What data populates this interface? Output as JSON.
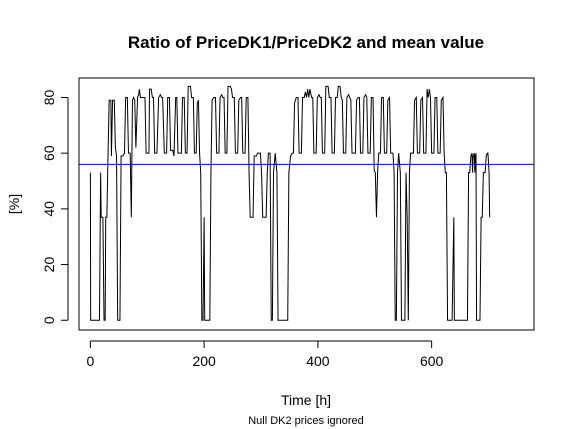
{
  "chart_data": {
    "type": "line",
    "title": "Ratio of PriceDK1/PriceDK2 and mean value",
    "xlabel": "Time [h]",
    "ylabel": "[%]",
    "subtitle": "Null DK2 prices ignored",
    "xlim": [
      -20,
      780
    ],
    "ylim": [
      -3.5,
      87
    ],
    "x_ticks": [
      0,
      200,
      400,
      600
    ],
    "y_ticks": [
      0,
      20,
      40,
      60,
      80
    ],
    "grid": false,
    "mean_line": {
      "value": 56,
      "color": "#0000cc"
    },
    "series": [
      {
        "color": "#000000",
        "points": [
          [
            0,
            53
          ],
          [
            0.5,
            0
          ],
          [
            8,
            0
          ],
          [
            10,
            0
          ],
          [
            16,
            0
          ],
          [
            18,
            53
          ],
          [
            19,
            37
          ],
          [
            22,
            37
          ],
          [
            24,
            0
          ],
          [
            26,
            0
          ],
          [
            27,
            37
          ],
          [
            29,
            37
          ],
          [
            31,
            59
          ],
          [
            33,
            79
          ],
          [
            36,
            79
          ],
          [
            37,
            59
          ],
          [
            39,
            79
          ],
          [
            42,
            79
          ],
          [
            44,
            62
          ],
          [
            46,
            59
          ],
          [
            48,
            0
          ],
          [
            50,
            0
          ],
          [
            52,
            0
          ],
          [
            54,
            59
          ],
          [
            57,
            59
          ],
          [
            60,
            60
          ],
          [
            62,
            80
          ],
          [
            65,
            80
          ],
          [
            67,
            60
          ],
          [
            70,
            60
          ],
          [
            72,
            37
          ],
          [
            74,
            79
          ],
          [
            76,
            80
          ],
          [
            78,
            79
          ],
          [
            80,
            62
          ],
          [
            83,
            80
          ],
          [
            85,
            81
          ],
          [
            86,
            83
          ],
          [
            88,
            80
          ],
          [
            92,
            80
          ],
          [
            96,
            80
          ],
          [
            98,
            60
          ],
          [
            103,
            60
          ],
          [
            104,
            83
          ],
          [
            107,
            83
          ],
          [
            109,
            80
          ],
          [
            111,
            80
          ],
          [
            113,
            60
          ],
          [
            117,
            60
          ],
          [
            120,
            80
          ],
          [
            123,
            81
          ],
          [
            125,
            80
          ],
          [
            127,
            80
          ],
          [
            130,
            60
          ],
          [
            134,
            60
          ],
          [
            136,
            80
          ],
          [
            139,
            80
          ],
          [
            141,
            61
          ],
          [
            145,
            61
          ],
          [
            147,
            59
          ],
          [
            150,
            80
          ],
          [
            152,
            80
          ],
          [
            154,
            60
          ],
          [
            158,
            60
          ],
          [
            160,
            60
          ],
          [
            162,
            80
          ],
          [
            165,
            80
          ],
          [
            167,
            60
          ],
          [
            170,
            60
          ],
          [
            172,
            84
          ],
          [
            176,
            84
          ],
          [
            178,
            80
          ],
          [
            181,
            80
          ],
          [
            183,
            60
          ],
          [
            186,
            60
          ],
          [
            188,
            78
          ],
          [
            190,
            79
          ],
          [
            192,
            60
          ],
          [
            194,
            53
          ],
          [
            196,
            0
          ],
          [
            198,
            0
          ],
          [
            200,
            37
          ],
          [
            201,
            0
          ],
          [
            204,
            0
          ],
          [
            206,
            0
          ],
          [
            208,
            0
          ],
          [
            210,
            0
          ],
          [
            212,
            53
          ],
          [
            214,
            79
          ],
          [
            217,
            80
          ],
          [
            220,
            80
          ],
          [
            222,
            60
          ],
          [
            226,
            60
          ],
          [
            228,
            80
          ],
          [
            231,
            81
          ],
          [
            233,
            80
          ],
          [
            235,
            80
          ],
          [
            237,
            60
          ],
          [
            240,
            60
          ],
          [
            242,
            84
          ],
          [
            246,
            84
          ],
          [
            248,
            83
          ],
          [
            250,
            80
          ],
          [
            253,
            80
          ],
          [
            255,
            60
          ],
          [
            259,
            60
          ],
          [
            261,
            79
          ],
          [
            264,
            80
          ],
          [
            266,
            80
          ],
          [
            268,
            60
          ],
          [
            272,
            60
          ],
          [
            274,
            80
          ],
          [
            277,
            80
          ],
          [
            279,
            53
          ],
          [
            281,
            37
          ],
          [
            286,
            37
          ],
          [
            288,
            59
          ],
          [
            292,
            59
          ],
          [
            294,
            60
          ],
          [
            299,
            60
          ],
          [
            301,
            53
          ],
          [
            303,
            37
          ],
          [
            309,
            37
          ],
          [
            311,
            53
          ],
          [
            313,
            60
          ],
          [
            316,
            60
          ],
          [
            318,
            0
          ],
          [
            320,
            0
          ],
          [
            322,
            53
          ],
          [
            325,
            60
          ],
          [
            328,
            53
          ],
          [
            330,
            0
          ],
          [
            345,
            0
          ],
          [
            347,
            0
          ],
          [
            349,
            53
          ],
          [
            352,
            59
          ],
          [
            355,
            60
          ],
          [
            357,
            60
          ],
          [
            359,
            78
          ],
          [
            362,
            80
          ],
          [
            365,
            80
          ],
          [
            367,
            60
          ],
          [
            371,
            60
          ],
          [
            373,
            80
          ],
          [
            376,
            80
          ],
          [
            378,
            82
          ],
          [
            380,
            80
          ],
          [
            382,
            83
          ],
          [
            384,
            80
          ],
          [
            386,
            83
          ],
          [
            389,
            80
          ],
          [
            391,
            80
          ],
          [
            393,
            60
          ],
          [
            397,
            60
          ],
          [
            399,
            80
          ],
          [
            402,
            81
          ],
          [
            404,
            80
          ],
          [
            406,
            80
          ],
          [
            408,
            60
          ],
          [
            412,
            60
          ],
          [
            414,
            84
          ],
          [
            418,
            84
          ],
          [
            420,
            80
          ],
          [
            423,
            80
          ],
          [
            425,
            60
          ],
          [
            429,
            60
          ],
          [
            431,
            80
          ],
          [
            434,
            80
          ],
          [
            436,
            84
          ],
          [
            439,
            84
          ],
          [
            441,
            80
          ],
          [
            443,
            79
          ],
          [
            445,
            60
          ],
          [
            449,
            60
          ],
          [
            451,
            80
          ],
          [
            454,
            81
          ],
          [
            456,
            80
          ],
          [
            458,
            79
          ],
          [
            460,
            60
          ],
          [
            464,
            60
          ],
          [
            466,
            60
          ],
          [
            468,
            79
          ],
          [
            471,
            80
          ],
          [
            473,
            80
          ],
          [
            475,
            60
          ],
          [
            479,
            60
          ],
          [
            481,
            80
          ],
          [
            484,
            81
          ],
          [
            486,
            80
          ],
          [
            488,
            60
          ],
          [
            492,
            60
          ],
          [
            494,
            80
          ],
          [
            497,
            80
          ],
          [
            499,
            54
          ],
          [
            501,
            53
          ],
          [
            503,
            37
          ],
          [
            505,
            53
          ],
          [
            507,
            60
          ],
          [
            510,
            60
          ],
          [
            512,
            80
          ],
          [
            515,
            80
          ],
          [
            517,
            60
          ],
          [
            521,
            60
          ],
          [
            523,
            79
          ],
          [
            526,
            80
          ],
          [
            528,
            60
          ],
          [
            532,
            60
          ],
          [
            534,
            53
          ],
          [
            536,
            0
          ],
          [
            538,
            0
          ],
          [
            540,
            53
          ],
          [
            542,
            60
          ],
          [
            545,
            53
          ],
          [
            547,
            0
          ],
          [
            551,
            0
          ],
          [
            553,
            0
          ],
          [
            555,
            53
          ],
          [
            557,
            37
          ],
          [
            559,
            0
          ],
          [
            561,
            53
          ],
          [
            563,
            60
          ],
          [
            566,
            60
          ],
          [
            568,
            60
          ],
          [
            570,
            79
          ],
          [
            573,
            80
          ],
          [
            575,
            60
          ],
          [
            579,
            60
          ],
          [
            581,
            79
          ],
          [
            584,
            80
          ],
          [
            586,
            60
          ],
          [
            590,
            60
          ],
          [
            592,
            83
          ],
          [
            594,
            80
          ],
          [
            596,
            83
          ],
          [
            598,
            80
          ],
          [
            600,
            60
          ],
          [
            604,
            60
          ],
          [
            606,
            80
          ],
          [
            609,
            80
          ],
          [
            611,
            60
          ],
          [
            615,
            60
          ],
          [
            617,
            79
          ],
          [
            620,
            80
          ],
          [
            622,
            60
          ],
          [
            624,
            53
          ],
          [
            626,
            53
          ],
          [
            628,
            0
          ],
          [
            632,
            0
          ],
          [
            634,
            0
          ],
          [
            636,
            0
          ],
          [
            639,
            37
          ],
          [
            640,
            0
          ],
          [
            644,
            0
          ],
          [
            646,
            0
          ],
          [
            648,
            0
          ],
          [
            650,
            0
          ],
          [
            660,
            0
          ],
          [
            663,
            0
          ],
          [
            665,
            53
          ],
          [
            667,
            53
          ],
          [
            669,
            59
          ],
          [
            671,
            60
          ],
          [
            672,
            53
          ],
          [
            673,
            59
          ],
          [
            675,
            60
          ],
          [
            676,
            53
          ],
          [
            677,
            59
          ],
          [
            678,
            60
          ],
          [
            679,
            0
          ],
          [
            681,
            0
          ],
          [
            683,
            0
          ],
          [
            685,
            0
          ],
          [
            687,
            37
          ],
          [
            689,
            37
          ],
          [
            691,
            53
          ],
          [
            694,
            53
          ],
          [
            696,
            59
          ],
          [
            698,
            60
          ],
          [
            699,
            60
          ],
          [
            701,
            53
          ],
          [
            702,
            37
          ]
        ]
      }
    ]
  }
}
